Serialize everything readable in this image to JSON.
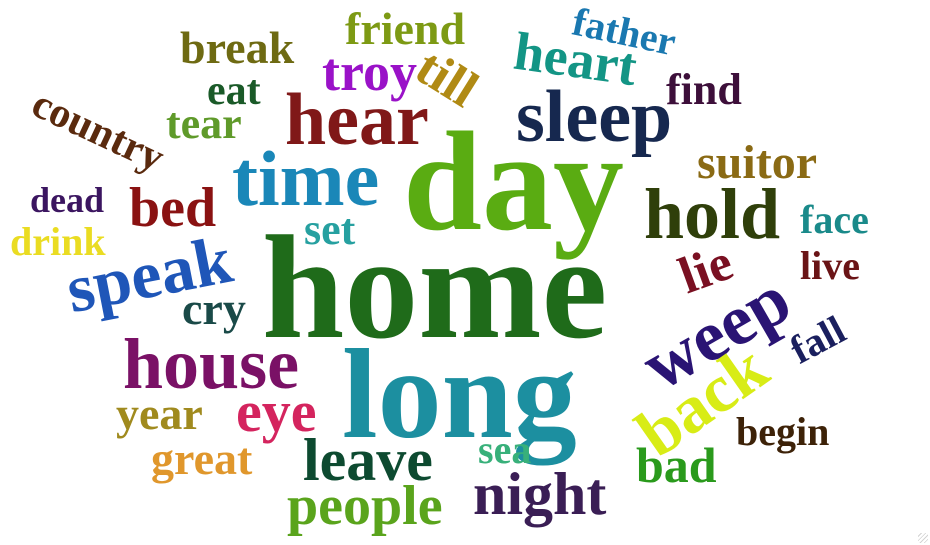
{
  "word_cloud": {
    "words": [
      {
        "text": "home",
        "color": "#1f6b1a"
      },
      {
        "text": "day",
        "color": "#5aac12"
      },
      {
        "text": "long",
        "color": "#1c8fa0"
      },
      {
        "text": "time",
        "color": "#1a87b8"
      },
      {
        "text": "hear",
        "color": "#801818"
      },
      {
        "text": "sleep",
        "color": "#16284f"
      },
      {
        "text": "house",
        "color": "#7a1166"
      },
      {
        "text": "hold",
        "color": "#2f3f0a"
      },
      {
        "text": "speak",
        "color": "#1f56b8"
      },
      {
        "text": "weep",
        "color": "#2a1474"
      },
      {
        "text": "back",
        "color": "#d8ec16"
      },
      {
        "text": "leave",
        "color": "#0d4a30"
      },
      {
        "text": "night",
        "color": "#3a1e55"
      },
      {
        "text": "people",
        "color": "#5aa41c"
      },
      {
        "text": "eye",
        "color": "#d4245e"
      },
      {
        "text": "heart",
        "color": "#139585"
      },
      {
        "text": "troy",
        "color": "#9a12c8"
      },
      {
        "text": "bed",
        "color": "#8a1212"
      },
      {
        "text": "year",
        "color": "#a08a1e"
      },
      {
        "text": "great",
        "color": "#e0972c"
      },
      {
        "text": "suitor",
        "color": "#8a6a14"
      },
      {
        "text": "bad",
        "color": "#2a9a1c"
      },
      {
        "text": "lie",
        "color": "#7a1022"
      },
      {
        "text": "till",
        "color": "#b08a14"
      },
      {
        "text": "break",
        "color": "#6e6a12"
      },
      {
        "text": "friend",
        "color": "#7d9a14"
      },
      {
        "text": "country",
        "color": "#5a2a0e"
      },
      {
        "text": "cry",
        "color": "#1a4a48"
      },
      {
        "text": "set",
        "color": "#26a0a0"
      },
      {
        "text": "tear",
        "color": "#5f9a2a"
      },
      {
        "text": "eat",
        "color": "#1a5a28"
      },
      {
        "text": "find",
        "color": "#3d0f3a"
      },
      {
        "text": "father",
        "color": "#1a78b0"
      },
      {
        "text": "face",
        "color": "#1a8a8a"
      },
      {
        "text": "live",
        "color": "#6a1416"
      },
      {
        "text": "fall",
        "color": "#1a1f5e"
      },
      {
        "text": "begin",
        "color": "#3d2208"
      },
      {
        "text": "sea",
        "color": "#38b07a"
      },
      {
        "text": "dead",
        "color": "#3b1560"
      },
      {
        "text": "drink",
        "color": "#eadc22"
      }
    ]
  }
}
